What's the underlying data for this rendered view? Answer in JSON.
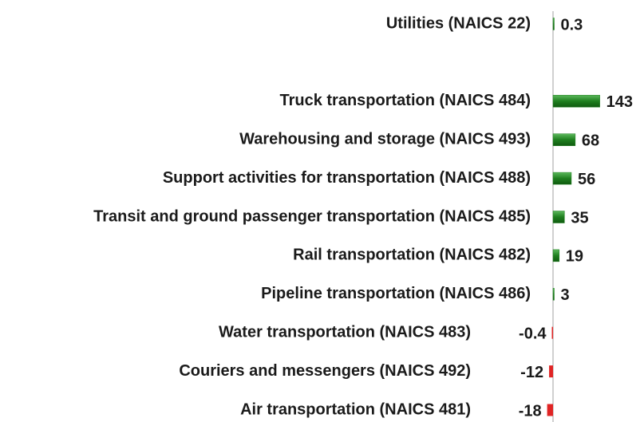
{
  "chart_data": {
    "type": "bar",
    "orientation": "horizontal",
    "categories": [
      "Utilities (NAICS 22)",
      null,
      "Truck transportation (NAICS 484)",
      "Warehousing and storage (NAICS 493)",
      "Support activities for transportation (NAICS 488)",
      "Transit and ground passenger transportation (NAICS 485)",
      "Rail transportation (NAICS 482)",
      "Pipeline  transportation (NAICS 486)",
      "Water transportation (NAICS 483)",
      "Couriers and messengers (NAICS 492)",
      "Air transportation (NAICS 481)"
    ],
    "values": [
      0.3,
      null,
      143,
      68,
      56,
      35,
      19,
      3,
      -0.4,
      -12,
      -18
    ],
    "positive_color": "#1f7f1f",
    "negative_color": "#e02424"
  }
}
